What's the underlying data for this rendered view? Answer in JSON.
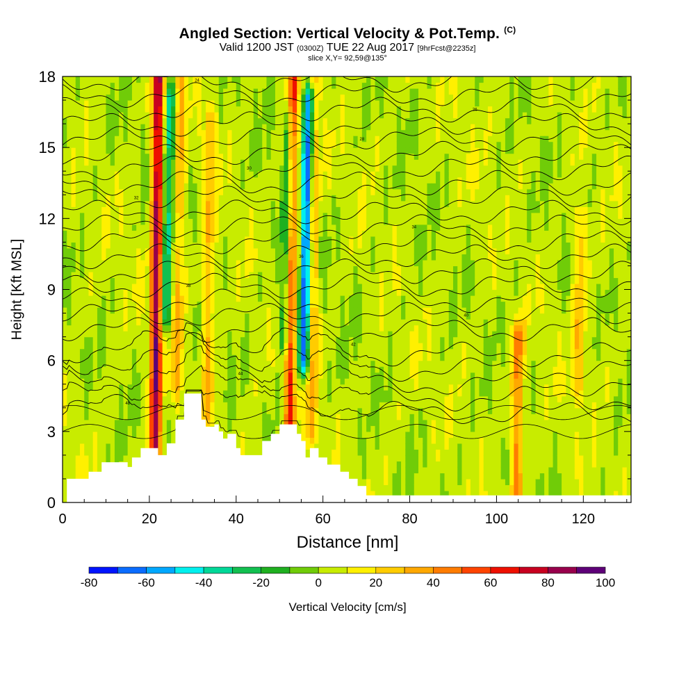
{
  "header": {
    "title": "Angled Section: Vertical Velocity & Pot.Temp.",
    "title_mark": "(C)",
    "valid_prefix": "Valid 1200 JST",
    "valid_utc": "(0300Z)",
    "valid_date": "TUE 22 Aug 2017",
    "fcst": "[9hrFcst@2235z]",
    "slice": "slice X,Y= 92,59@135°"
  },
  "chart_data": {
    "type": "heatmap",
    "xlabel": "Distance [nm]",
    "ylabel": "Height [Kft MSL]",
    "xlim": [
      0,
      131
    ],
    "ylim": [
      0,
      18
    ],
    "x_ticks": [
      0,
      20,
      40,
      60,
      80,
      100,
      120
    ],
    "y_ticks": [
      0,
      3,
      6,
      9,
      12,
      15,
      18
    ],
    "colorbar": {
      "label": "Vertical Velocity [cm/s]",
      "tick_labels": [
        "-80",
        "-60",
        "-40",
        "-20",
        "0",
        "20",
        "40",
        "60",
        "80",
        "100"
      ],
      "bounds": [
        -80,
        -70,
        -60,
        -50,
        -40,
        -30,
        -20,
        -10,
        0,
        10,
        20,
        30,
        40,
        50,
        60,
        70,
        80,
        90,
        100
      ],
      "colors": [
        "#0014ff",
        "#0a6cff",
        "#00a8ff",
        "#00f0ee",
        "#00d898",
        "#12c050",
        "#1fb020",
        "#70cc08",
        "#c8ec00",
        "#fff000",
        "#ffcc00",
        "#ffa800",
        "#ff7c00",
        "#ff4400",
        "#ee1000",
        "#c80020",
        "#98004c",
        "#5e0078"
      ]
    },
    "terrain": [
      [
        0,
        0.0
      ],
      [
        1,
        1.0
      ],
      [
        6,
        1.3
      ],
      [
        9,
        1.7
      ],
      [
        13,
        1.7
      ],
      [
        15,
        1.5
      ],
      [
        16,
        1.9
      ],
      [
        18,
        2.3
      ],
      [
        21,
        2.3
      ],
      [
        22,
        2.0
      ],
      [
        24,
        2.5
      ],
      [
        26,
        3.5
      ],
      [
        28,
        4.6
      ],
      [
        31,
        4.6
      ],
      [
        32,
        3.5
      ],
      [
        33,
        3.2
      ],
      [
        35,
        3.3
      ],
      [
        36,
        3.0
      ],
      [
        37,
        2.7
      ],
      [
        38,
        2.9
      ],
      [
        40,
        2.3
      ],
      [
        41,
        2.0
      ],
      [
        44,
        2.0
      ],
      [
        46,
        2.6
      ],
      [
        48,
        2.9
      ],
      [
        50,
        3.3
      ],
      [
        53,
        3.3
      ],
      [
        54,
        2.9
      ],
      [
        55,
        2.6
      ],
      [
        56,
        1.9
      ],
      [
        57,
        2.3
      ],
      [
        59,
        1.9
      ],
      [
        61,
        1.6
      ],
      [
        64,
        1.3
      ],
      [
        66,
        1.0
      ],
      [
        68,
        0.7
      ],
      [
        70,
        0.3
      ],
      [
        71,
        0.3
      ],
      [
        131,
        0.3
      ]
    ],
    "isentrope_labels": [
      "48",
      "44",
      "42",
      "40",
      "38",
      "36",
      "34",
      "32",
      "30",
      "28",
      "26",
      "24"
    ],
    "features": [
      {
        "kind": "updraft",
        "x": 21.5,
        "y_range": [
          1.5,
          18
        ],
        "peak": 82
      },
      {
        "kind": "updraft",
        "x": 26.5,
        "y_range": [
          5,
          18
        ],
        "peak": 28
      },
      {
        "kind": "updraft",
        "x": 33.5,
        "y_range": [
          4,
          16
        ],
        "peak": 26
      },
      {
        "kind": "updraft",
        "x": 52.5,
        "y_range": [
          2.5,
          18
        ],
        "peak": 55
      },
      {
        "kind": "updraft",
        "x": 57.5,
        "y_range": [
          3,
          18
        ],
        "peak": 30
      },
      {
        "kind": "updraft",
        "x": 105,
        "y_range": [
          0.3,
          7
        ],
        "peak": 42
      },
      {
        "kind": "updraft",
        "x": 119,
        "y_range": [
          5,
          12
        ],
        "peak": 25
      },
      {
        "kind": "downdraft",
        "x": 23.5,
        "y_range": [
          8,
          17
        ],
        "peak": -38
      },
      {
        "kind": "downdraft",
        "x": 55.5,
        "y_range": [
          6,
          17
        ],
        "peak": -72
      },
      {
        "kind": "downdraft",
        "x": 51,
        "y_range": [
          7,
          16
        ],
        "peak": -35
      }
    ]
  }
}
